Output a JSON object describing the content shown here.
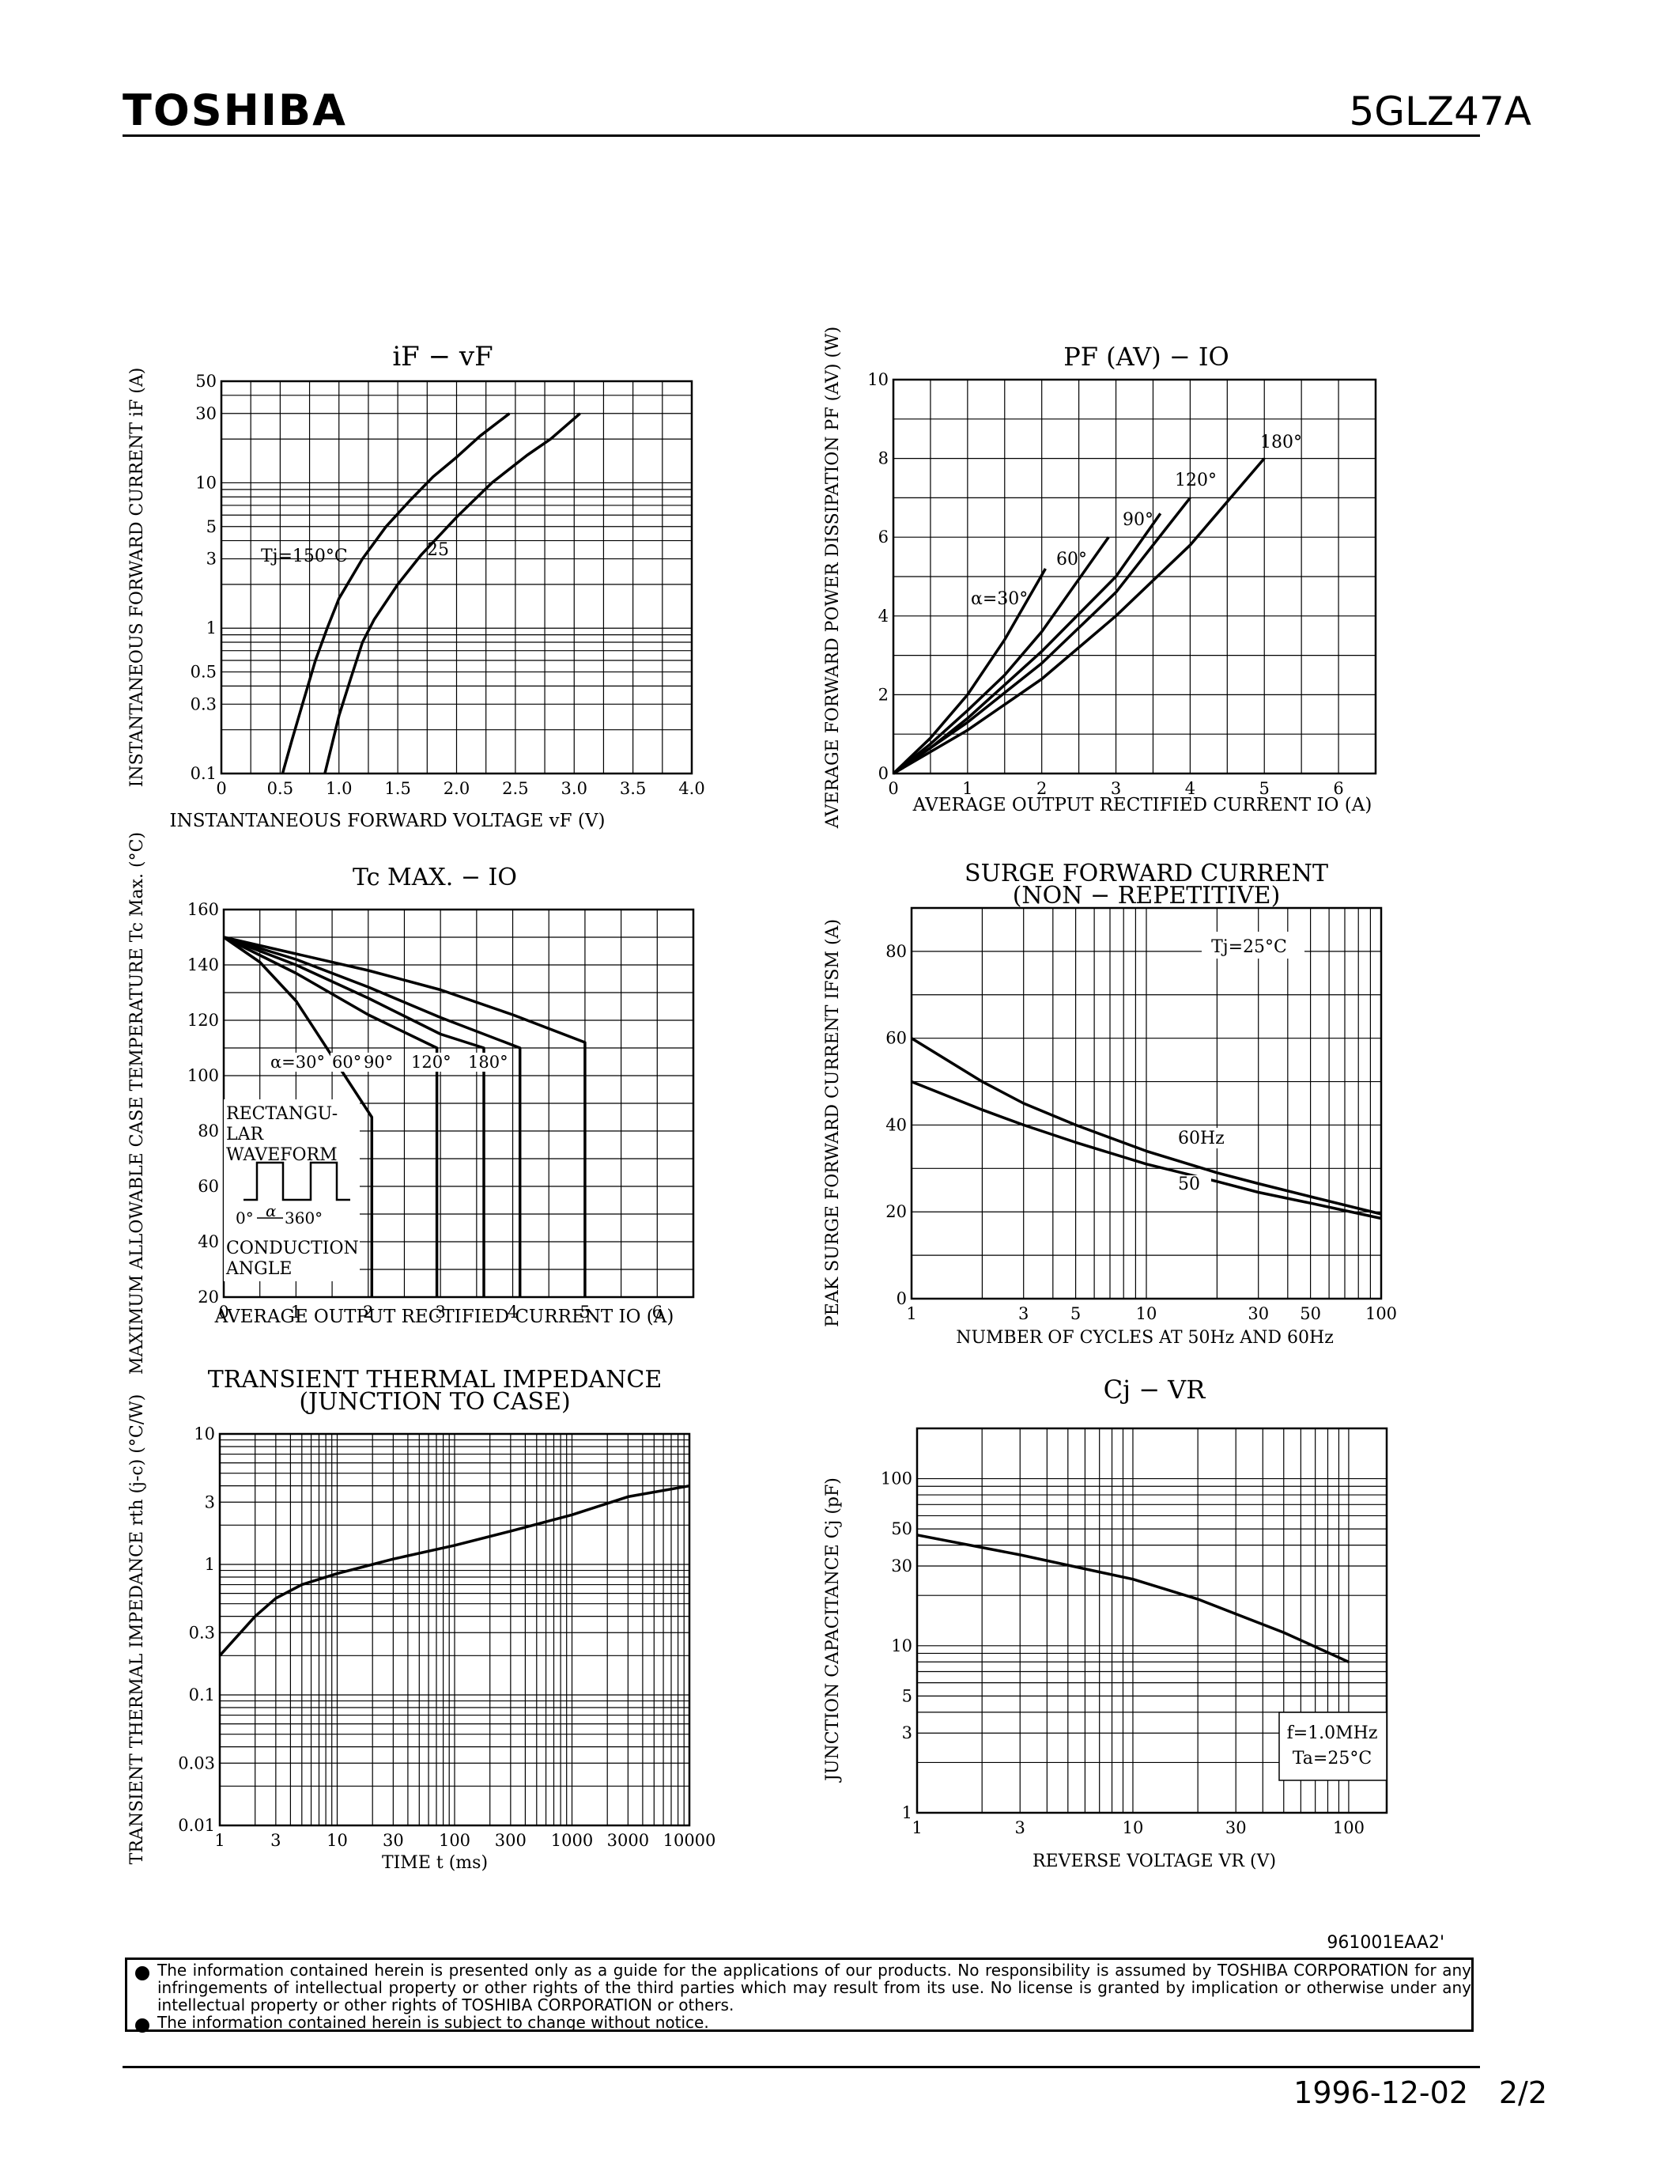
{
  "header": {
    "brand": "TOSHIBA",
    "part_number": "5GLZ47A"
  },
  "charts": {
    "if_vf": {
      "title": "iF − vF",
      "ylabel": "INSTANTANEOUS FORWARD CURRENT  iF (A)",
      "xlabel": "INSTANTANEOUS FORWARD VOLTAGE  vF (V)",
      "xticks": [
        "0",
        "0.5",
        "1.0",
        "1.5",
        "2.0",
        "2.5",
        "3.0",
        "3.5",
        "4.0"
      ],
      "yticks": [
        "0.1",
        "0.3",
        "0.5",
        "1",
        "3",
        "5",
        "10",
        "30",
        "50"
      ],
      "series_labels": [
        "Tj=150°C",
        "25"
      ]
    },
    "pf_io": {
      "title": "PF (AV) − IO",
      "ylabel": "AVERAGE FORWARD POWER DISSIPATION  PF (AV) (W)",
      "xlabel": "AVERAGE OUTPUT RECTIFIED CURRENT  IO (A)",
      "xticks": [
        "0",
        "1",
        "2",
        "3",
        "4",
        "5",
        "6"
      ],
      "yticks": [
        "0",
        "2",
        "4",
        "6",
        "8",
        "10"
      ],
      "series_labels": [
        "α=30°",
        "60°",
        "90°",
        "120°",
        "180°"
      ]
    },
    "tc_io": {
      "title": "Tc MAX. − IO",
      "ylabel": "MAXIMUM ALLOWABLE CASE TEMPERATURE  Tc Max. (°C)",
      "xlabel": "AVERAGE OUTPUT RECTIFIED CURRENT  IO (A)",
      "xticks": [
        "0",
        "1",
        "2",
        "3",
        "4",
        "5",
        "6"
      ],
      "yticks": [
        "20",
        "40",
        "60",
        "80",
        "100",
        "120",
        "140",
        "160"
      ],
      "series_labels": [
        "α=30°",
        "60°",
        "90°",
        "120°",
        "180°"
      ],
      "inset_lines": [
        "RECTANGU-",
        "LAR",
        "WAVEFORM",
        "CONDUCTION",
        "ANGLE"
      ],
      "inset_marks": [
        "0°",
        "α",
        "360°"
      ]
    },
    "surge": {
      "title_line1": "SURGE FORWARD CURRENT",
      "title_line2": "(NON − REPETITIVE)",
      "ylabel": "PEAK SURGE FORWARD CURRENT  IFSM (A)",
      "xlabel": "NUMBER OF CYCLES AT 50Hz AND 60Hz",
      "xticks": [
        "1",
        "3",
        "5",
        "10",
        "30",
        "50",
        "100"
      ],
      "yticks": [
        "0",
        "20",
        "40",
        "60",
        "80"
      ],
      "series_labels": [
        "60Hz",
        "50"
      ],
      "condition": "Tj=25°C"
    },
    "thermal": {
      "title_line1": "TRANSIENT THERMAL IMPEDANCE",
      "title_line2": "(JUNCTION TO CASE)",
      "ylabel": "TRANSIENT THERMAL IMPEDANCE  rth (j-c) (°C/W)",
      "xlabel": "TIME  t  (ms)",
      "xticks": [
        "1",
        "3",
        "10",
        "30",
        "100",
        "300",
        "1000",
        "3000",
        "10000"
      ],
      "yticks": [
        "0.01",
        "0.03",
        "0.1",
        "0.3",
        "1",
        "3",
        "10"
      ]
    },
    "cj_vr": {
      "title": "Cj − VR",
      "ylabel": "JUNCTION CAPACITANCE  Cj (pF)",
      "xlabel": "REVERSE VOLTAGE  VR (V)",
      "xticks": [
        "1",
        "3",
        "10",
        "30",
        "100"
      ],
      "yticks": [
        "1",
        "3",
        "5",
        "10",
        "30",
        "50",
        "100"
      ],
      "conditions": [
        "f=1.0MHz",
        "Ta=25°C"
      ]
    }
  },
  "chart_data": [
    {
      "type": "line",
      "title": "iF − vF",
      "xlabel": "INSTANTANEOUS FORWARD VOLTAGE vF (V)",
      "ylabel": "INSTANTANEOUS FORWARD CURRENT iF (A)",
      "xlim": [
        0,
        4.0
      ],
      "ylim": [
        0.1,
        50
      ],
      "y_scale": "log",
      "series": [
        {
          "name": "Tj=150°C",
          "x": [
            0.52,
            0.6,
            0.7,
            0.8,
            0.9,
            1.0,
            1.2,
            1.4,
            1.6,
            1.8,
            2.0,
            2.2,
            2.45
          ],
          "y": [
            0.1,
            0.17,
            0.32,
            0.6,
            1.0,
            1.6,
            3.0,
            5.0,
            7.5,
            11,
            15,
            21,
            30
          ]
        },
        {
          "name": "25",
          "x": [
            0.88,
            1.0,
            1.1,
            1.2,
            1.3,
            1.5,
            1.7,
            2.0,
            2.3,
            2.6,
            2.8,
            3.05
          ],
          "y": [
            0.1,
            0.25,
            0.45,
            0.8,
            1.15,
            2.0,
            3.2,
            5.8,
            10,
            15.5,
            20,
            30
          ]
        }
      ]
    },
    {
      "type": "line",
      "title": "PF (AV) − IO",
      "xlabel": "AVERAGE OUTPUT RECTIFIED CURRENT IO (A)",
      "ylabel": "AVERAGE FORWARD POWER DISSIPATION PF (AV) (W)",
      "xlim": [
        0,
        6.5
      ],
      "ylim": [
        0,
        10
      ],
      "series": [
        {
          "name": "α=30°",
          "x": [
            0,
            0.5,
            1.0,
            1.5,
            2.05
          ],
          "y": [
            0,
            0.9,
            2.0,
            3.4,
            5.2
          ]
        },
        {
          "name": "60°",
          "x": [
            0,
            0.5,
            1.0,
            1.5,
            2.0,
            2.9
          ],
          "y": [
            0,
            0.75,
            1.6,
            2.5,
            3.6,
            6.0
          ]
        },
        {
          "name": "90°",
          "x": [
            0,
            0.5,
            1.0,
            2.0,
            3.0,
            3.6
          ],
          "y": [
            0,
            0.65,
            1.4,
            3.1,
            5.0,
            6.6
          ]
        },
        {
          "name": "120°",
          "x": [
            0,
            1.0,
            2.0,
            3.0,
            4.0
          ],
          "y": [
            0,
            1.3,
            2.8,
            4.6,
            7.0
          ]
        },
        {
          "name": "180°",
          "x": [
            0,
            1.0,
            2.0,
            3.0,
            4.0,
            5.0
          ],
          "y": [
            0,
            1.1,
            2.4,
            4.0,
            5.8,
            8.0
          ]
        }
      ]
    },
    {
      "type": "line",
      "title": "Tc MAX. − IO",
      "xlabel": "AVERAGE OUTPUT RECTIFIED CURRENT IO (A)",
      "ylabel": "MAXIMUM ALLOWABLE CASE TEMPERATURE Tc Max. (°C)",
      "xlim": [
        0,
        6.5
      ],
      "ylim": [
        20,
        160
      ],
      "series": [
        {
          "name": "α=30°",
          "x": [
            0,
            0.5,
            1.0,
            1.5,
            2.05,
            2.05
          ],
          "y": [
            150,
            141,
            127,
            107,
            85,
            20
          ]
        },
        {
          "name": "60°",
          "x": [
            0,
            1.0,
            2.0,
            2.95,
            2.95
          ],
          "y": [
            150,
            137,
            122,
            110,
            20
          ]
        },
        {
          "name": "90°",
          "x": [
            0,
            1.0,
            2.0,
            3.0,
            3.6,
            3.6
          ],
          "y": [
            150,
            140,
            128,
            115,
            110,
            20
          ]
        },
        {
          "name": "120°",
          "x": [
            0,
            1.0,
            2.0,
            3.0,
            4.1,
            4.1
          ],
          "y": [
            150,
            142,
            132,
            121,
            110,
            20
          ]
        },
        {
          "name": "180°",
          "x": [
            0,
            1.0,
            2.0,
            3.0,
            4.0,
            5.0,
            5.0
          ],
          "y": [
            150,
            144,
            138,
            131,
            122,
            112,
            20
          ]
        }
      ]
    },
    {
      "type": "line",
      "title": "SURGE FORWARD CURRENT (NON − REPETITIVE)",
      "xlabel": "NUMBER OF CYCLES AT 50Hz AND 60Hz",
      "ylabel": "PEAK SURGE FORWARD CURRENT IFSM (A)",
      "xlim": [
        1,
        100
      ],
      "ylim": [
        0,
        90
      ],
      "x_scale": "log",
      "series": [
        {
          "name": "60Hz",
          "x": [
            1,
            2,
            3,
            5,
            10,
            20,
            30,
            50,
            100
          ],
          "y": [
            60,
            50,
            45,
            40,
            34,
            29,
            26.5,
            23.5,
            19.5
          ]
        },
        {
          "name": "50",
          "x": [
            1,
            2,
            3,
            5,
            10,
            20,
            30,
            50,
            100
          ],
          "y": [
            50,
            43.5,
            40,
            36,
            31,
            27,
            24.5,
            22,
            18.5
          ]
        }
      ]
    },
    {
      "type": "line",
      "title": "TRANSIENT THERMAL IMPEDANCE (JUNCTION TO CASE)",
      "xlabel": "TIME t (ms)",
      "ylabel": "TRANSIENT THERMAL IMPEDANCE rth (j-c) (°C/W)",
      "xlim": [
        1,
        10000
      ],
      "ylim": [
        0.01,
        10
      ],
      "x_scale": "log",
      "y_scale": "log",
      "series": [
        {
          "name": "",
          "x": [
            1,
            1.5,
            2,
            3,
            5,
            10,
            20,
            30,
            100,
            300,
            1000,
            3000,
            10000
          ],
          "y": [
            0.2,
            0.3,
            0.4,
            0.55,
            0.7,
            0.85,
            1.0,
            1.1,
            1.4,
            1.8,
            2.4,
            3.3,
            4.0
          ]
        }
      ]
    },
    {
      "type": "line",
      "title": "Cj − VR",
      "xlabel": "REVERSE VOLTAGE VR (V)",
      "ylabel": "JUNCTION CAPACITANCE Cj (pF)",
      "xlim": [
        1,
        150
      ],
      "ylim": [
        1,
        200
      ],
      "x_scale": "log",
      "y_scale": "log",
      "series": [
        {
          "name": "",
          "x": [
            1,
            3,
            10,
            20,
            30,
            50,
            100
          ],
          "y": [
            46,
            35,
            25,
            19,
            15.5,
            12,
            8
          ]
        }
      ]
    }
  ],
  "footer": {
    "code": "961001EAA2'",
    "disclaimer_1": "The information contained herein is presented only as a guide for the applications of our products. No responsibility is assumed by TOSHIBA CORPORATION for any infringements of intellectual property or other rights of the third parties which may result from its use. No license is granted by implication or otherwise under any intellectual property or other rights of TOSHIBA CORPORATION or others.",
    "disclaimer_2": "The information contained herein is subject to change without notice.",
    "date": "1996-12-02",
    "page": "2/2"
  }
}
